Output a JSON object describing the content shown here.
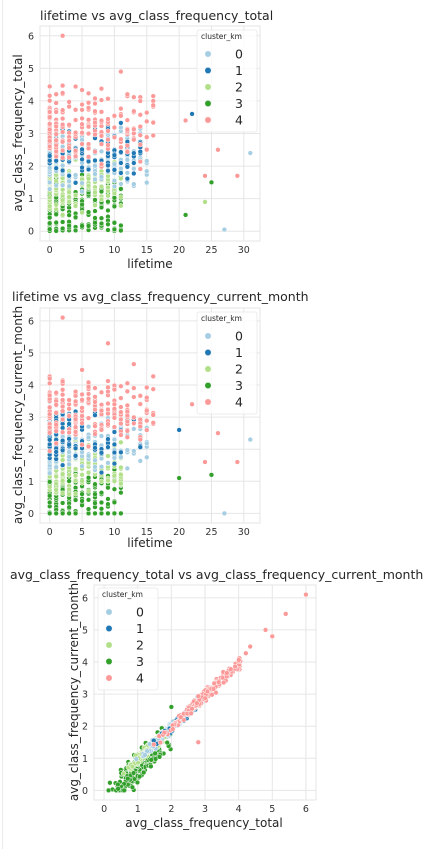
{
  "chart_data": [
    {
      "type": "scatter",
      "title": "lifetime vs avg_class_frequency_total",
      "xlabel": "lifetime",
      "ylabel": "avg_class_frequency_total",
      "xlim": [
        -1.5,
        32.5
      ],
      "ylim": [
        -0.3,
        6.3
      ],
      "xticks": [
        0,
        5,
        10,
        15,
        20,
        25,
        30
      ],
      "yticks": [
        0,
        1,
        2,
        3,
        4,
        5,
        6
      ],
      "grid": true,
      "legend_title": "cluster_km",
      "legend_placement": "top-right",
      "series": [
        {
          "name": "0",
          "color": "#a6cee3"
        },
        {
          "name": "1",
          "color": "#1f78b4"
        },
        {
          "name": "2",
          "color": "#b2df8a"
        },
        {
          "name": "3",
          "color": "#33a02c"
        },
        {
          "name": "4",
          "color": "#fb9a99"
        }
      ],
      "outliers": [
        {
          "series": "4",
          "x": 2,
          "y": 6.0
        },
        {
          "series": "4",
          "x": 11,
          "y": 4.9
        },
        {
          "series": "4",
          "x": 26,
          "y": 2.5
        },
        {
          "series": "0",
          "x": 31,
          "y": 2.4
        },
        {
          "series": "0",
          "x": 27,
          "y": 0.05
        },
        {
          "series": "4",
          "x": 29,
          "y": 1.7
        },
        {
          "series": "4",
          "x": 24,
          "y": 1.7
        },
        {
          "series": "2",
          "x": 24,
          "y": 0.9
        },
        {
          "series": "3",
          "x": 21,
          "y": 0.5
        },
        {
          "series": "3",
          "x": 25,
          "y": 1.5
        },
        {
          "series": "1",
          "x": 22,
          "y": 3.6
        },
        {
          "series": "4",
          "x": 21,
          "y": 3.4
        }
      ]
    },
    {
      "type": "scatter",
      "title": "lifetime vs avg_class_frequency_current_month",
      "xlabel": "lifetime",
      "ylabel": "avg_class_frequency_current_month",
      "xlim": [
        -1.5,
        32.5
      ],
      "ylim": [
        -0.3,
        6.4
      ],
      "xticks": [
        0,
        5,
        10,
        15,
        20,
        25,
        30
      ],
      "yticks": [
        0,
        1,
        2,
        3,
        4,
        5,
        6
      ],
      "grid": true,
      "legend_title": "cluster_km",
      "legend_placement": "top-right",
      "series": [
        {
          "name": "0",
          "color": "#a6cee3"
        },
        {
          "name": "1",
          "color": "#1f78b4"
        },
        {
          "name": "2",
          "color": "#b2df8a"
        },
        {
          "name": "3",
          "color": "#33a02c"
        },
        {
          "name": "4",
          "color": "#fb9a99"
        }
      ],
      "outliers": [
        {
          "series": "4",
          "x": 2,
          "y": 6.1
        },
        {
          "series": "4",
          "x": 9,
          "y": 5.3
        },
        {
          "series": "4",
          "x": 22,
          "y": 3.4
        },
        {
          "series": "4",
          "x": 26,
          "y": 2.5
        },
        {
          "series": "0",
          "x": 31,
          "y": 2.3
        },
        {
          "series": "0",
          "x": 27,
          "y": 0.0
        },
        {
          "series": "4",
          "x": 29,
          "y": 1.6
        },
        {
          "series": "4",
          "x": 24,
          "y": 1.6
        },
        {
          "series": "3",
          "x": 20,
          "y": 1.1
        },
        {
          "series": "3",
          "x": 25,
          "y": 1.2
        },
        {
          "series": "1",
          "x": 20,
          "y": 2.6
        }
      ]
    },
    {
      "type": "scatter",
      "title": "avg_class_frequency_total vs avg_class_frequency_current_month",
      "xlabel": "avg_class_frequency_total",
      "ylabel": "avg_class_frequency_current_month",
      "xlim": [
        -0.3,
        6.3
      ],
      "ylim": [
        -0.3,
        6.4
      ],
      "xticks": [
        0,
        1,
        2,
        3,
        4,
        5,
        6
      ],
      "yticks": [
        0,
        1,
        2,
        3,
        4,
        5,
        6
      ],
      "grid": true,
      "legend_title": "cluster_km",
      "legend_placement": "top-left",
      "series": [
        {
          "name": "0",
          "color": "#a6cee3"
        },
        {
          "name": "1",
          "color": "#1f78b4"
        },
        {
          "name": "2",
          "color": "#b2df8a"
        },
        {
          "name": "3",
          "color": "#33a02c"
        },
        {
          "name": "4",
          "color": "#fb9a99"
        }
      ],
      "outliers": [
        {
          "series": "4",
          "x": 6.0,
          "y": 6.1
        },
        {
          "series": "4",
          "x": 5.4,
          "y": 5.5
        },
        {
          "series": "4",
          "x": 5.0,
          "y": 4.8
        },
        {
          "series": "4",
          "x": 4.8,
          "y": 5.0
        },
        {
          "series": "4",
          "x": 2.8,
          "y": 1.5
        },
        {
          "series": "3",
          "x": 2.0,
          "y": 2.6
        }
      ]
    }
  ]
}
